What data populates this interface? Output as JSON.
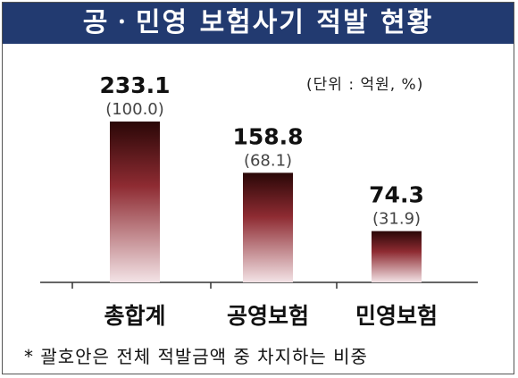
{
  "title": "공ㆍ민영 보험사기 적발 현황",
  "unit": "(단위 : 억원, %)",
  "footnote": "* 괄호안은 전체 적발금액 중 차지하는 비중",
  "chart_data": {
    "type": "bar",
    "title": "공ㆍ민영 보험사기 적발 현황",
    "categories": [
      "총합계",
      "공영보험",
      "민영보험"
    ],
    "values": [
      233.1,
      158.8,
      74.3
    ],
    "shares": [
      "(100.0)",
      "(68.1)",
      "(31.9)"
    ],
    "value_labels": [
      "233.1",
      "158.8",
      "74.3"
    ],
    "ylim": [
      0,
      233.1
    ],
    "grid": false,
    "legend": "none",
    "bar_colors": {
      "top": "#2a0707",
      "mid": "#8e2b32",
      "bottom": "#f3e3e6"
    }
  }
}
